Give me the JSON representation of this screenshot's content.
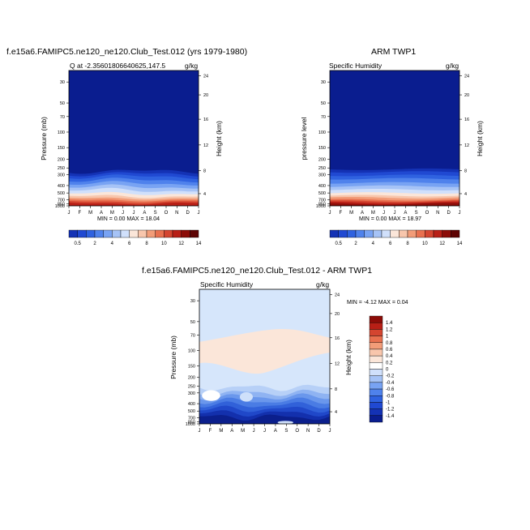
{
  "chart_data": [
    {
      "type": "heatmap",
      "title": "f.e15a6.FAMIPC5.ne120_ne120.Club_Test.012 (yrs 1979-1980)",
      "subtitle_left": "Q at -2.35601806640625,147.5",
      "subtitle_right": "g/kg",
      "ylabel": "Pressure (mb)",
      "ylabel_right": "Height (km)",
      "x_ticks": [
        "J",
        "F",
        "M",
        "A",
        "M",
        "J",
        "J",
        "A",
        "S",
        "O",
        "N",
        "D",
        "J"
      ],
      "y_ticks": [
        "30",
        "50",
        "70",
        "100",
        "150",
        "200",
        "250",
        "300",
        "400",
        "500",
        "700",
        "850",
        "1000"
      ],
      "y_ticks_right": [
        "24",
        "20",
        "16",
        "12",
        "8",
        "4"
      ],
      "min_label": "MIN =",
      "min_value": "0.00",
      "max_label": "MAX =",
      "max_value": "18.04",
      "colorbar_labels": [
        "0.5",
        "2",
        "4",
        "6",
        "8",
        "10",
        "12",
        "14"
      ],
      "colorbar_levels": [
        0.5,
        1,
        2,
        3,
        4,
        5,
        6,
        7,
        8,
        9,
        10,
        11,
        12,
        13,
        14
      ],
      "colorbar_colors": [
        "#0a1d8f",
        "#1432b5",
        "#2049d2",
        "#2f62e0",
        "#4f82ec",
        "#78a3f3",
        "#a6c3f6",
        "#d0e0fb",
        "#fbe6d9",
        "#f8c6ac",
        "#f29c78",
        "#e8704f",
        "#d44530",
        "#b81f16",
        "#8c0c08",
        "#5e0303"
      ]
    },
    {
      "type": "heatmap",
      "title": "ARM TWP1",
      "subtitle_left": "Specific Humidity",
      "subtitle_right": "g/kg",
      "ylabel": "pressure level",
      "ylabel_right": "Height (km)",
      "x_ticks": [
        "J",
        "F",
        "M",
        "A",
        "M",
        "J",
        "J",
        "A",
        "S",
        "O",
        "N",
        "D",
        "J"
      ],
      "y_ticks": [
        "30",
        "50",
        "70",
        "100",
        "150",
        "200",
        "250",
        "300",
        "400",
        "500",
        "700",
        "850",
        "1000"
      ],
      "y_ticks_right": [
        "24",
        "20",
        "16",
        "12",
        "8",
        "4"
      ],
      "min_label": "MIN =",
      "min_value": "0.00",
      "max_label": "MAX =",
      "max_value": "18.97",
      "colorbar_labels": [
        "0.5",
        "2",
        "4",
        "6",
        "8",
        "10",
        "12",
        "14"
      ]
    },
    {
      "type": "heatmap",
      "title": "f.e15a6.FAMIPC5.ne120_ne120.Club_Test.012 - ARM TWP1",
      "subtitle_left": "Specific Humidity",
      "subtitle_right": "g/kg",
      "ylabel": "Pressure (mb)",
      "ylabel_right": "Height (km)",
      "x_ticks": [
        "J",
        "F",
        "M",
        "A",
        "M",
        "J",
        "J",
        "A",
        "S",
        "O",
        "N",
        "D",
        "J"
      ],
      "y_ticks": [
        "30",
        "50",
        "70",
        "100",
        "150",
        "200",
        "250",
        "300",
        "400",
        "500",
        "700",
        "850",
        "1000"
      ],
      "y_ticks_right": [
        "24",
        "20",
        "16",
        "12",
        "8",
        "4"
      ],
      "min_label": "MIN =",
      "min_value": "-4.12",
      "max_label": "MAX =",
      "max_value": "0.04",
      "colorbar_labels": [
        "1.4",
        "1.2",
        "1",
        "0.8",
        "0.6",
        "0.4",
        "0.2",
        "0",
        "-0.2",
        "-0.4",
        "-0.6",
        "-0.8",
        "-1",
        "-1.2",
        "-1.4"
      ],
      "colorbar_colors": [
        "#8c0c08",
        "#b81f16",
        "#d44530",
        "#e8704f",
        "#f29c78",
        "#f8c6ac",
        "#fbe6d9",
        "#ffffff",
        "#d0e0fb",
        "#a6c3f6",
        "#78a3f3",
        "#4f82ec",
        "#2f62e0",
        "#2049d2",
        "#1432b5",
        "#0a1d8f"
      ]
    }
  ]
}
